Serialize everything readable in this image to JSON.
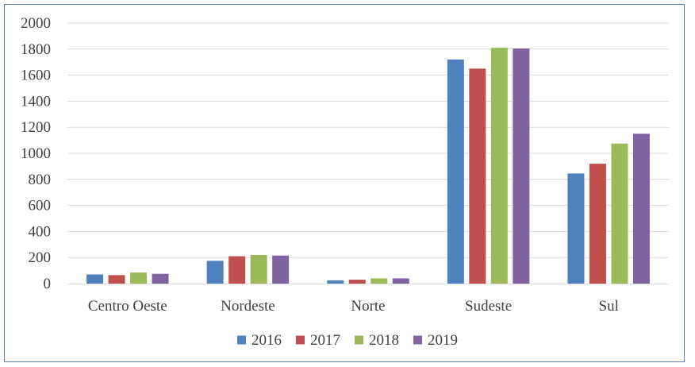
{
  "chart_data": {
    "type": "bar",
    "categories": [
      "Centro Oeste",
      "Nordeste",
      "Norte",
      "Sudeste",
      "Sul"
    ],
    "series": [
      {
        "name": "2016",
        "color": "#4f81bd",
        "values": [
          70,
          175,
          25,
          1720,
          845
        ]
      },
      {
        "name": "2017",
        "color": "#c0504d",
        "values": [
          65,
          210,
          30,
          1650,
          920
        ]
      },
      {
        "name": "2018",
        "color": "#9bbb59",
        "values": [
          85,
          220,
          40,
          1810,
          1075
        ]
      },
      {
        "name": "2019",
        "color": "#8064a2",
        "values": [
          75,
          215,
          40,
          1805,
          1150
        ]
      }
    ],
    "yticks": [
      "0",
      "200",
      "400",
      "600",
      "800",
      "1000",
      "1200",
      "1400",
      "1600",
      "1800",
      "2000"
    ],
    "ylim": [
      0,
      2000
    ],
    "grid": true,
    "legend_position": "bottom-center",
    "title": "",
    "xlabel": "",
    "ylabel": ""
  }
}
